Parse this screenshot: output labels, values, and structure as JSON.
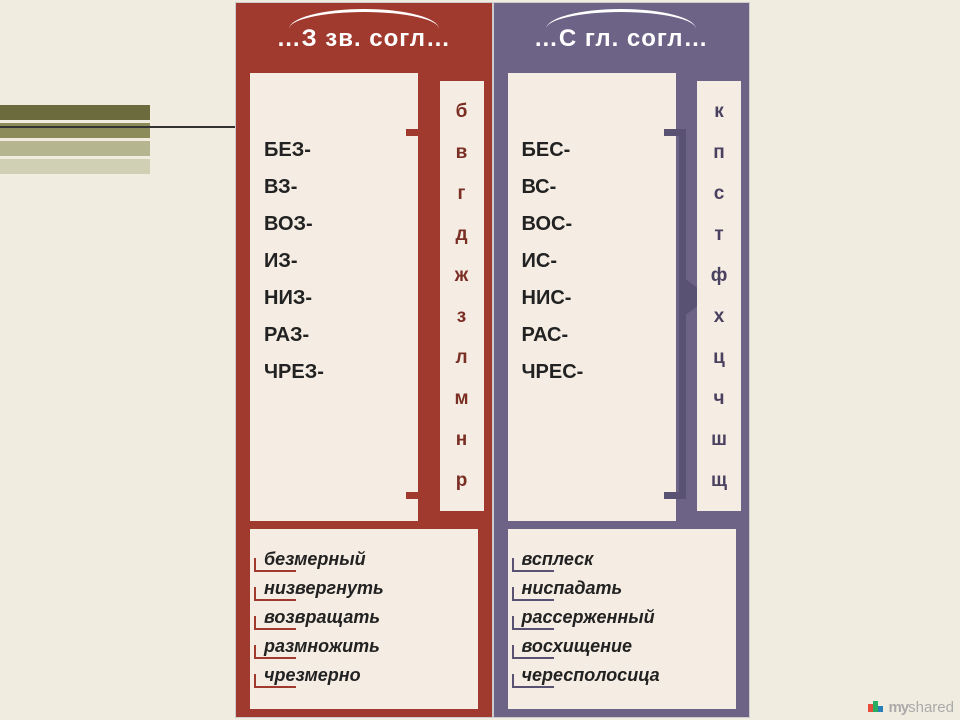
{
  "left_stripes": [
    "#6b6b3e",
    "#8c8c5a",
    "#b5b58f",
    "#d0d0b5"
  ],
  "red": {
    "header": "…З зв. согл…",
    "prefixes": [
      "БЕЗ-",
      "ВЗ-",
      "ВОЗ-",
      "ИЗ-",
      "НИЗ-",
      "РАЗ-",
      "ЧРЕЗ-"
    ],
    "letters": [
      "б",
      "в",
      "г",
      "д",
      "ж",
      "з",
      "л",
      "м",
      "н",
      "р"
    ],
    "examples": [
      "безмерный",
      "низвергнуть",
      "возвращать",
      "размножить",
      "чрезмерно"
    ],
    "bg": "#a13a2e"
  },
  "purp": {
    "header": "…С гл. согл…",
    "prefixes": [
      "БЕС-",
      "ВС-",
      "ВОС-",
      "ИС-",
      "НИС-",
      "РАС-",
      "ЧРЕС-"
    ],
    "letters": [
      "к",
      "п",
      "с",
      "т",
      "ф",
      "х",
      "ц",
      "ч",
      "ш",
      "щ"
    ],
    "examples": [
      "всплеск",
      "ниспадать",
      "рассерженный",
      "восхищение",
      "чересполосица"
    ],
    "bg": "#6d6386"
  },
  "watermark": "myshared"
}
